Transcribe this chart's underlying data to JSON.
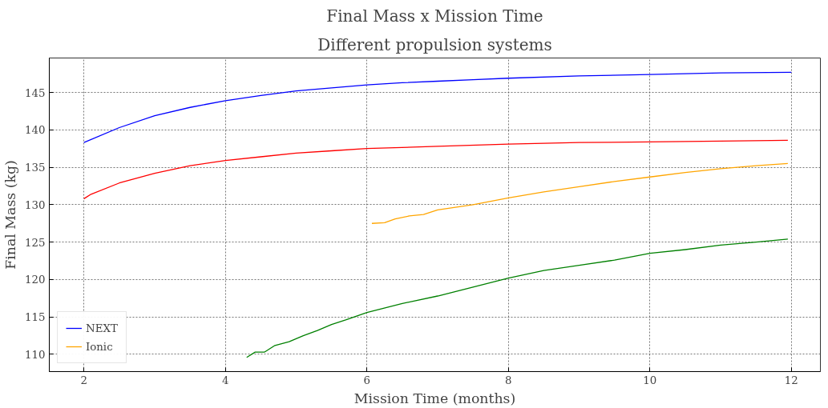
{
  "chart_data": {
    "type": "line",
    "title": "Final Mass x Mission Time",
    "subtitle": "Different propulsion systems",
    "xlabel": "Mission Time (months)",
    "ylabel": "Final Mass (kg)",
    "xlim": [
      1.51,
      12.41
    ],
    "ylim": [
      107.7,
      149.6
    ],
    "xticks": [
      2,
      4,
      6,
      8,
      10,
      12
    ],
    "yticks": [
      110,
      115,
      120,
      125,
      130,
      135,
      140,
      145
    ],
    "grid": true,
    "legend": "bottom left",
    "line_style": "solid",
    "marker": "none",
    "series": [
      {
        "color": "#ff0000",
        "x": [
          2.0,
          2.1,
          2.5,
          3.0,
          3.5,
          4.0,
          4.5,
          5.0,
          5.5,
          6.0,
          7.0,
          8.0,
          9.0,
          10.0,
          11.0,
          11.95
        ],
        "values": [
          130.8,
          131.4,
          132.9,
          134.2,
          135.2,
          135.9,
          136.4,
          136.9,
          137.2,
          137.5,
          137.8,
          138.1,
          138.3,
          138.4,
          138.5,
          138.6
        ]
      },
      {
        "color": "#008000",
        "x": [
          4.3,
          4.42,
          4.55,
          4.7,
          4.9,
          5.1,
          5.3,
          5.5,
          5.7,
          6.0,
          6.5,
          7.0,
          7.5,
          8.0,
          8.5,
          9.0,
          9.5,
          10.0,
          10.5,
          11.0,
          11.5,
          11.95
        ],
        "values": [
          109.6,
          110.3,
          110.3,
          111.2,
          111.7,
          112.5,
          113.2,
          114.0,
          114.6,
          115.6,
          116.8,
          117.8,
          119.0,
          120.2,
          121.2,
          121.9,
          122.6,
          123.5,
          124.0,
          124.6,
          125.0,
          125.4
        ]
      },
      {
        "name": "NEXT",
        "color": "#0000ff",
        "x": [
          2.0,
          2.5,
          3.0,
          3.5,
          4.0,
          4.5,
          5.0,
          5.5,
          6.0,
          6.5,
          7.0,
          7.5,
          8.0,
          9.0,
          10.0,
          11.0,
          12.0
        ],
        "values": [
          138.3,
          140.3,
          141.9,
          143.0,
          143.9,
          144.6,
          145.2,
          145.6,
          146.0,
          146.3,
          146.5,
          146.7,
          146.9,
          147.2,
          147.4,
          147.6,
          147.7
        ]
      },
      {
        "name": "Ionic",
        "color": "#ffa500",
        "x": [
          6.07,
          6.25,
          6.4,
          6.6,
          6.8,
          7.0,
          7.5,
          8.0,
          8.5,
          9.0,
          9.5,
          10.0,
          10.5,
          11.0,
          11.5,
          11.95
        ],
        "values": [
          127.5,
          127.6,
          128.1,
          128.5,
          128.7,
          129.3,
          130.0,
          130.9,
          131.7,
          132.4,
          133.1,
          133.7,
          134.3,
          134.8,
          135.2,
          135.5
        ]
      }
    ]
  }
}
